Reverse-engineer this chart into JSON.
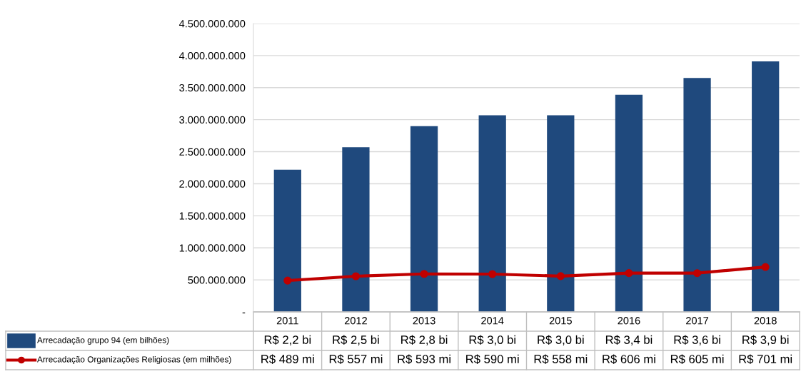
{
  "chart_data": {
    "type": "bar",
    "categories": [
      "2011",
      "2012",
      "2013",
      "2014",
      "2015",
      "2016",
      "2017",
      "2018"
    ],
    "series": [
      {
        "name": "Arrecadação grupo 94 (em bilhões)",
        "color": "#1f497d",
        "values": [
          2220000000,
          2570000000,
          2900000000,
          3070000000,
          3070000000,
          3390000000,
          3650000000,
          3910000000
        ],
        "value_labels": [
          "R$ 2,2 bi",
          "R$ 2,5 bi",
          "R$ 2,8 bi",
          "R$ 3,0 bi",
          "R$ 3,0 bi",
          "R$ 3,4 bi",
          "R$ 3,6 bi",
          "R$ 3,9 bi"
        ]
      },
      {
        "name": "Arrecadação Organizações Religiosas (em milhões)",
        "type": "line",
        "color": "#c00000",
        "marker": "circle",
        "values": [
          489000000,
          557000000,
          593000000,
          590000000,
          558000000,
          606000000,
          605000000,
          701000000
        ],
        "value_labels": [
          "R$ 489 mi",
          "R$ 557 mi",
          "R$ 593 mi",
          "R$ 590 mi",
          "R$ 558 mi",
          "R$ 606 mi",
          "R$ 605 mi",
          "R$ 701 mi"
        ]
      }
    ],
    "ylim": [
      0,
      4500000000
    ],
    "yticks": [
      {
        "value": 0,
        "label": "-"
      },
      {
        "value": 500000000,
        "label": "500.000.000"
      },
      {
        "value": 1000000000,
        "label": "1.000.000.000"
      },
      {
        "value": 1500000000,
        "label": "1.500.000.000"
      },
      {
        "value": 2000000000,
        "label": "2.000.000.000"
      },
      {
        "value": 2500000000,
        "label": "2.500.000.000"
      },
      {
        "value": 3000000000,
        "label": "3.000.000.000"
      },
      {
        "value": 3500000000,
        "label": "3.500.000.000"
      },
      {
        "value": 4000000000,
        "label": "4.000.000.000"
      },
      {
        "value": 4500000000,
        "label": "4.500.000.000"
      }
    ],
    "grid": "y",
    "legend": "bottom"
  }
}
